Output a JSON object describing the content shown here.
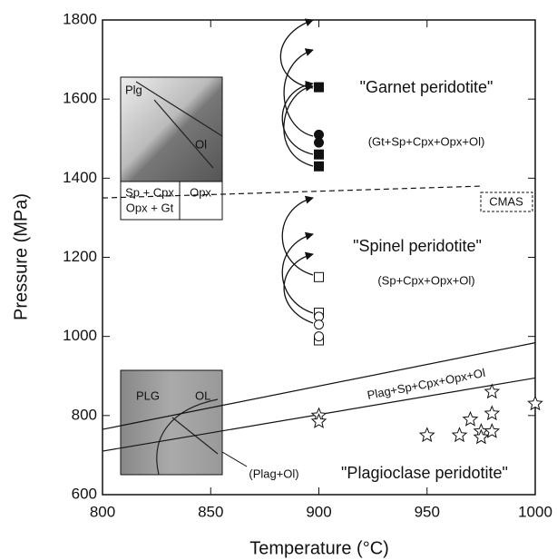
{
  "chart_data": {
    "type": "scatter",
    "xlabel": "Temperature (°C)",
    "ylabel": "Pressure (MPa)",
    "xlim": [
      800,
      1000
    ],
    "xticks": [
      800,
      850,
      900,
      950,
      1000
    ],
    "ylim": [
      600,
      1800
    ],
    "yticks": [
      600,
      800,
      1000,
      1200,
      1400,
      1600,
      1800
    ],
    "series": [
      {
        "marker": "square",
        "filled": true,
        "x": [
          900,
          900,
          900
        ],
        "values": [
          1630,
          1460,
          1430
        ]
      },
      {
        "marker": "circle",
        "filled": true,
        "x": [
          900,
          900
        ],
        "values": [
          1510,
          1490
        ]
      },
      {
        "marker": "square",
        "filled": false,
        "x": [
          900,
          900,
          900
        ],
        "values": [
          1150,
          1060,
          990
        ]
      },
      {
        "marker": "circle",
        "filled": false,
        "x": [
          900,
          900,
          900
        ],
        "values": [
          1050,
          1030,
          1000
        ]
      },
      {
        "marker": "star",
        "filled": false,
        "x": [
          900,
          900,
          950,
          965,
          970,
          975,
          975,
          980,
          980,
          980,
          1000
        ],
        "values": [
          800,
          785,
          750,
          750,
          790,
          760,
          745,
          860,
          805,
          760,
          830
        ]
      }
    ],
    "lines": [
      {
        "dashed": true,
        "x": [
          800,
          975
        ],
        "values": [
          1350,
          1380
        ]
      },
      {
        "dashed": false,
        "x": [
          800,
          1000
        ],
        "values": [
          765,
          984
        ]
      },
      {
        "dashed": false,
        "x": [
          800,
          1000
        ],
        "values": [
          710,
          895
        ]
      }
    ],
    "annotations": [
      "\"Garnet peridotite\"",
      "(Gt+Sp+Cpx+Opx+Ol)",
      "\"Spinel peridotite\"",
      "(Sp+Cpx+Opx+Ol)",
      "CMAS",
      "Plag+Sp+Cpx+Opx+Ol",
      "(Plag+Ol)",
      "\"Plagioclase peridotite\"",
      "Plg",
      "Ol",
      "Sp + Cpx",
      "Opx + Gt",
      "Opx",
      "PLG",
      "OL"
    ]
  }
}
